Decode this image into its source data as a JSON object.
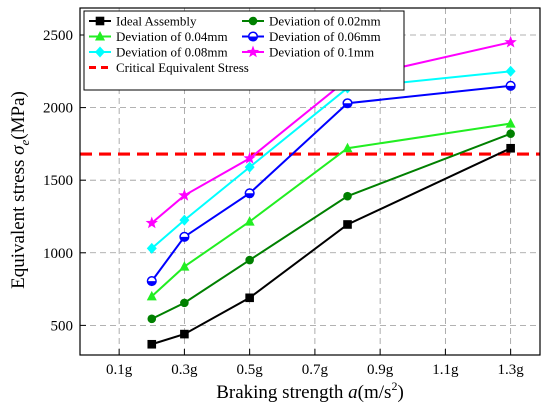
{
  "chart_data": {
    "type": "line",
    "xlabel": {
      "prefix": "Braking strength ",
      "symbol": "a",
      "unit_open": "(m/s",
      "unit_exp": "2",
      "unit_close": ")"
    },
    "ylabel": {
      "prefix": "Equivalent stress ",
      "symbol": "σ",
      "subscript": "e",
      "unit": "(MPa)"
    },
    "x_ticks": [
      {
        "value": 0.1,
        "label": "0.1g"
      },
      {
        "value": 0.3,
        "label": "0.3g"
      },
      {
        "value": 0.5,
        "label": "0.5g"
      },
      {
        "value": 0.7,
        "label": "0.7g"
      },
      {
        "value": 0.9,
        "label": "0.9g"
      },
      {
        "value": 1.1,
        "label": "1.1g"
      },
      {
        "value": 1.3,
        "label": "1.3g"
      }
    ],
    "y_ticks": [
      500,
      1000,
      1500,
      2000,
      2500
    ],
    "xlim": [
      -0.02,
      1.39
    ],
    "ylim": [
      296,
      2686
    ],
    "grid": true,
    "legend_position": "top",
    "x": [
      0.2,
      0.3,
      0.5,
      0.8,
      1.3
    ],
    "series": [
      {
        "name": "Ideal Assembly",
        "color": "#000000",
        "marker": "square",
        "values": [
          370,
          440,
          690,
          1195,
          1720
        ]
      },
      {
        "name": "Deviation of 0.02mm",
        "color": "#008000",
        "marker": "circle",
        "values": [
          545,
          655,
          950,
          1390,
          1820
        ]
      },
      {
        "name": "Deviation of 0.04mm",
        "color": "#22ee22",
        "marker": "triangle",
        "values": [
          700,
          905,
          1215,
          1720,
          1890
        ]
      },
      {
        "name": "Deviation of 0.06mm",
        "color": "#0000ff",
        "marker": "circle-half",
        "values": [
          805,
          1110,
          1410,
          2030,
          2150
        ]
      },
      {
        "name": "Deviation of 0.08mm",
        "color": "#00ffff",
        "marker": "diamond",
        "values": [
          1030,
          1225,
          1590,
          2135,
          2250
        ]
      },
      {
        "name": "Deviation of 0.1mm",
        "color": "#ff00ff",
        "marker": "star",
        "values": [
          1205,
          1395,
          1650,
          2195,
          2450
        ]
      }
    ],
    "reference_line": {
      "name": "Critical Equivalent Stress",
      "value": 1680,
      "color": "#ff0000"
    }
  }
}
